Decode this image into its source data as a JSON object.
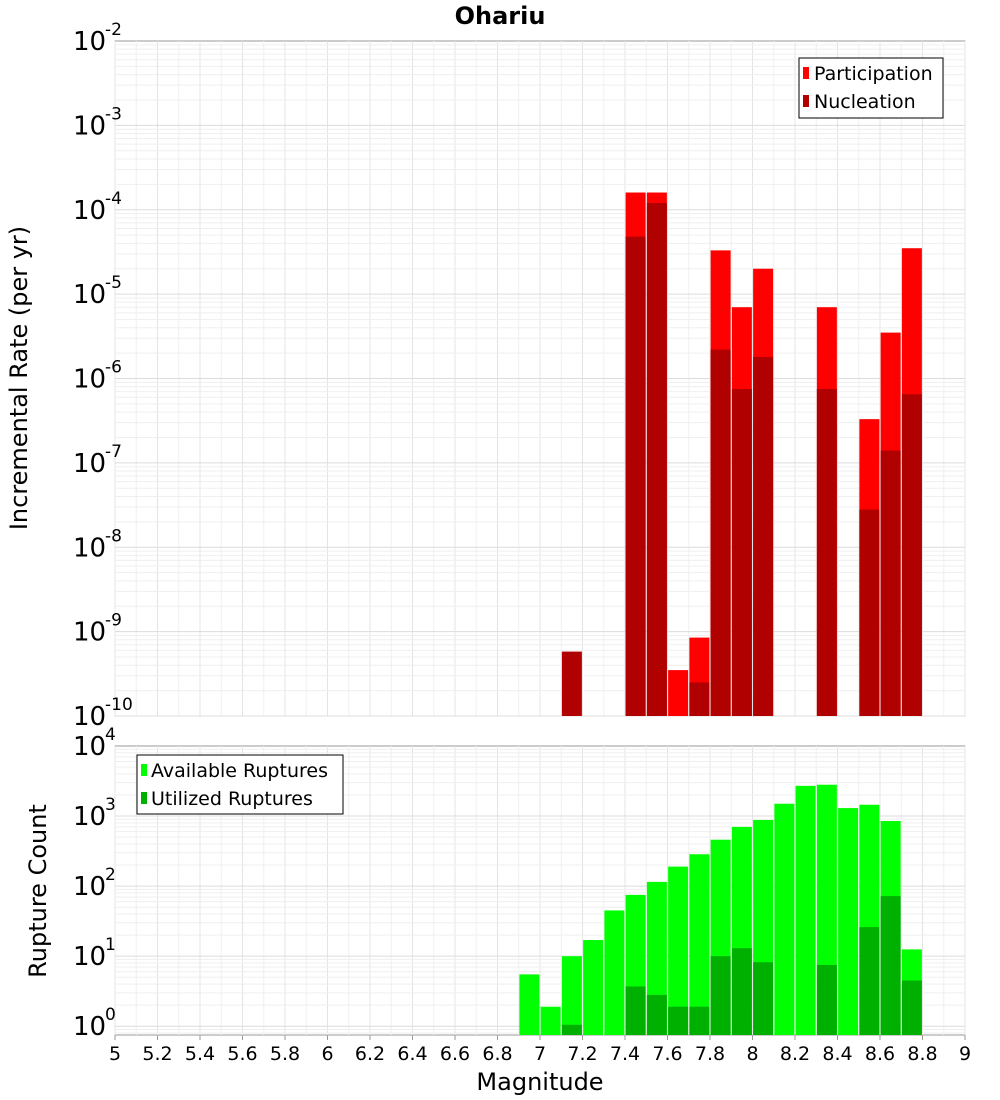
{
  "chart_data": [
    {
      "type": "bar",
      "title": "Ohariu",
      "xlabel": "",
      "ylabel": "Incremental Rate (per yr)",
      "yscale": "log",
      "xlim": [
        5,
        9
      ],
      "ylim": [
        1e-10,
        0.01
      ],
      "ytick_exponents": [
        "-2",
        "-3",
        "-4",
        "-5",
        "-6",
        "-7",
        "-8",
        "-9",
        "-10"
      ],
      "grid": true,
      "legend_position": "top-right",
      "series": [
        {
          "name": "Participation",
          "color": "#ff0000",
          "x": [
            7.45,
            7.55,
            7.65,
            7.75,
            7.85,
            7.95,
            8.05,
            8.35,
            8.55,
            8.65,
            8.75
          ],
          "values": [
            0.00016,
            0.00016,
            3.5e-10,
            8.5e-10,
            3.3e-05,
            7e-06,
            2e-05,
            7e-06,
            3.3e-07,
            3.5e-06,
            3.5e-05
          ]
        },
        {
          "name": "Nucleation",
          "color": "#b00000",
          "x": [
            7.15,
            7.45,
            7.55,
            7.75,
            7.85,
            7.95,
            8.05,
            8.35,
            8.55,
            8.65,
            8.75
          ],
          "values": [
            5.8e-10,
            4.8e-05,
            0.00012,
            2.5e-10,
            2.2e-06,
            7.5e-07,
            1.8e-06,
            7.5e-07,
            2.8e-08,
            1.4e-07,
            6.5e-07
          ]
        }
      ]
    },
    {
      "type": "bar",
      "title": "",
      "xlabel": "Magnitude",
      "ylabel": "Rupture Count",
      "yscale": "log",
      "xlim": [
        5,
        9
      ],
      "ylim": [
        0.75,
        10000
      ],
      "ytick_exponents": [
        "4",
        "3",
        "2",
        "1",
        "0"
      ],
      "xticks": [
        "5",
        "5.2",
        "5.4",
        "5.6",
        "5.8",
        "6",
        "6.2",
        "6.4",
        "6.6",
        "6.8",
        "7",
        "7.2",
        "7.4",
        "7.6",
        "7.8",
        "8",
        "8.2",
        "8.4",
        "8.6",
        "8.8",
        "9"
      ],
      "grid": true,
      "legend_position": "top-left",
      "series": [
        {
          "name": "Available Ruptures",
          "color": "#00ff00",
          "x": [
            6.95,
            7.05,
            7.15,
            7.25,
            7.35,
            7.45,
            7.55,
            7.65,
            7.75,
            7.85,
            7.95,
            8.05,
            8.15,
            8.25,
            8.35,
            8.45,
            8.55,
            8.65,
            8.75
          ],
          "values": [
            5.5,
            1.9,
            10,
            17,
            45,
            75,
            115,
            190,
            285,
            460,
            700,
            880,
            1500,
            2700,
            2800,
            1300,
            1450,
            850,
            12.5
          ]
        },
        {
          "name": "Utilized Ruptures",
          "color": "#00b000",
          "x": [
            7.15,
            7.45,
            7.55,
            7.65,
            7.75,
            7.85,
            7.95,
            8.05,
            8.35,
            8.55,
            8.65,
            8.75
          ],
          "values": [
            1.05,
            3.7,
            2.8,
            1.9,
            1.9,
            10,
            13,
            8.2,
            7.5,
            26,
            72,
            4.5
          ]
        }
      ]
    }
  ]
}
